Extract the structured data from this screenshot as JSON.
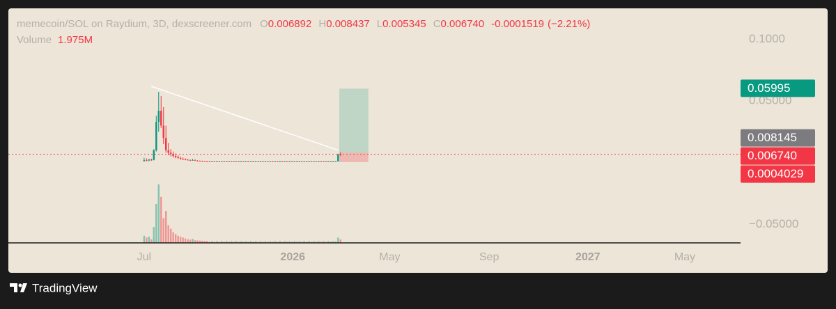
{
  "chart_data": {
    "type": "candlestick",
    "title": "memecoin/SOL on Raydium, 3D, dexscreener.com",
    "ohlc": [
      {
        "letter": "O",
        "value": 0.006892
      },
      {
        "letter": "H",
        "value": 0.008437
      },
      {
        "letter": "L",
        "value": 0.005345
      },
      {
        "letter": "C",
        "value": 0.00674,
        "label": "0.006740"
      }
    ],
    "change": -0.0001519,
    "change_pct": {
      "value": -2.21,
      "label": "(−2.21%)"
    },
    "volume_title": "Volume",
    "volume_value": {
      "value": 1975000,
      "label": "1.975M"
    },
    "categories": [
      null,
      null,
      null,
      null,
      null,
      null,
      null,
      null,
      null,
      null,
      null,
      null,
      null,
      null,
      null,
      null,
      null,
      null,
      null,
      null,
      null,
      null,
      null,
      null,
      null,
      null,
      null,
      null,
      null,
      null,
      null,
      null,
      null,
      null,
      null,
      null,
      null,
      null,
      null,
      null,
      null,
      null,
      null,
      null,
      null,
      null,
      null,
      null,
      null,
      null,
      null,
      null,
      null,
      null,
      null,
      null,
      null,
      null,
      null,
      null,
      null,
      null,
      null,
      null,
      null,
      null,
      null,
      null,
      null,
      null,
      null,
      null,
      null,
      null,
      null,
      null,
      null,
      null,
      null,
      null,
      null,
      null
    ],
    "open": [
      0.0012,
      0.002,
      0.0018,
      0.0025,
      0.0022,
      0.01,
      0.033,
      0.042,
      0.03,
      0.02,
      0.01,
      0.008,
      0.007,
      0.0055,
      0.0045,
      0.0038,
      0.003,
      0.0028,
      0.0024,
      0.002,
      0.0018,
      0.0022,
      0.0016,
      0.0015,
      0.0013,
      0.0012,
      0.0011,
      0.001,
      0.0009,
      0.001,
      0.0009,
      0.001,
      0.0009,
      0.001,
      0.0009,
      0.001,
      0.0009,
      0.001,
      0.0009,
      0.001,
      0.0009,
      0.001,
      0.0009,
      0.001,
      0.0009,
      0.001,
      0.0009,
      0.001,
      0.0009,
      0.001,
      0.0009,
      0.001,
      0.0009,
      0.001,
      0.0009,
      0.001,
      0.0009,
      0.001,
      0.0009,
      0.001,
      0.0009,
      0.001,
      0.0009,
      0.001,
      0.0009,
      0.001,
      0.0009,
      0.001,
      0.0009,
      0.001,
      0.0009,
      0.001,
      0.0009,
      0.001,
      0.0009,
      0.001,
      0.0009,
      0.001,
      0.0009,
      0.001,
      0.001,
      0.006892
    ],
    "high": [
      0.004,
      0.0035,
      0.003,
      0.0032,
      0.011,
      0.038,
      0.0573,
      0.054,
      0.045,
      0.03,
      0.016,
      0.011,
      0.009,
      0.0075,
      0.006,
      0.005,
      0.0042,
      0.0035,
      0.003,
      0.0026,
      0.003,
      0.0026,
      0.002,
      0.0018,
      0.0016,
      0.0014,
      0.0013,
      0.0011,
      0.0011,
      0.0011,
      0.0011,
      0.0011,
      0.0011,
      0.0011,
      0.0011,
      0.0011,
      0.0011,
      0.0011,
      0.0011,
      0.0011,
      0.0011,
      0.0011,
      0.0011,
      0.0011,
      0.0011,
      0.0011,
      0.0011,
      0.0011,
      0.0011,
      0.0011,
      0.0011,
      0.0011,
      0.0011,
      0.0011,
      0.0011,
      0.0011,
      0.0011,
      0.0011,
      0.0011,
      0.0011,
      0.0011,
      0.0011,
      0.0011,
      0.0011,
      0.0011,
      0.0011,
      0.0011,
      0.0011,
      0.0011,
      0.0011,
      0.0011,
      0.0011,
      0.0011,
      0.0011,
      0.0011,
      0.0011,
      0.0011,
      0.0011,
      0.0011,
      0.0011,
      0.0072,
      0.008437
    ],
    "low": [
      0.0008,
      0.0012,
      0.001,
      0.0015,
      0.0018,
      0.009,
      0.025,
      0.028,
      0.015,
      0.008,
      0.006,
      0.005,
      0.004,
      0.0035,
      0.003,
      0.0025,
      0.0022,
      0.002,
      0.0018,
      0.0015,
      0.0016,
      0.0014,
      0.0012,
      0.0011,
      0.001,
      0.0009,
      0.0009,
      0.0008,
      0.0008,
      0.0008,
      0.0008,
      0.0008,
      0.0008,
      0.0008,
      0.0008,
      0.0008,
      0.0008,
      0.0008,
      0.0008,
      0.0008,
      0.0008,
      0.0008,
      0.0008,
      0.0008,
      0.0008,
      0.0008,
      0.0008,
      0.0008,
      0.0008,
      0.0008,
      0.0008,
      0.0008,
      0.0008,
      0.0008,
      0.0008,
      0.0008,
      0.0008,
      0.0008,
      0.0008,
      0.0008,
      0.0008,
      0.0008,
      0.0008,
      0.0008,
      0.0008,
      0.0008,
      0.0008,
      0.0008,
      0.0008,
      0.0008,
      0.0008,
      0.0008,
      0.0008,
      0.0008,
      0.0008,
      0.0008,
      0.0008,
      0.0008,
      0.0008,
      0.0008,
      0.0009,
      0.005345
    ],
    "close": [
      0.002,
      0.0018,
      0.0025,
      0.0022,
      0.01,
      0.033,
      0.042,
      0.03,
      0.02,
      0.01,
      0.008,
      0.007,
      0.0055,
      0.0045,
      0.0038,
      0.003,
      0.0028,
      0.0024,
      0.002,
      0.0018,
      0.0022,
      0.0016,
      0.0015,
      0.0013,
      0.0012,
      0.0011,
      0.001,
      0.0009,
      0.001,
      0.0009,
      0.001,
      0.0009,
      0.001,
      0.0009,
      0.001,
      0.0009,
      0.001,
      0.0009,
      0.001,
      0.0009,
      0.001,
      0.0009,
      0.001,
      0.0009,
      0.001,
      0.0009,
      0.001,
      0.0009,
      0.001,
      0.0009,
      0.001,
      0.0009,
      0.001,
      0.0009,
      0.001,
      0.0009,
      0.001,
      0.0009,
      0.001,
      0.0009,
      0.001,
      0.0009,
      0.001,
      0.0009,
      0.001,
      0.0009,
      0.001,
      0.0009,
      0.001,
      0.0009,
      0.001,
      0.0009,
      0.001,
      0.0009,
      0.001,
      0.0009,
      0.001,
      0.0009,
      0.001,
      0.001,
      0.0069,
      0.00674
    ],
    "volume": [
      4000000,
      3000000,
      3500000,
      2000000,
      9000000,
      22000000,
      33000000,
      26000000,
      14000000,
      18000000,
      10000000,
      8000000,
      6000000,
      5000000,
      4000000,
      3500000,
      3000000,
      2500000,
      2000000,
      1800000,
      2200000,
      1500000,
      1400000,
      1300000,
      1200000,
      1100000,
      1000000,
      600000,
      900000,
      600000,
      900000,
      600000,
      900000,
      600000,
      900000,
      600000,
      900000,
      600000,
      900000,
      600000,
      900000,
      600000,
      900000,
      600000,
      900000,
      600000,
      900000,
      600000,
      900000,
      600000,
      900000,
      600000,
      900000,
      600000,
      900000,
      600000,
      900000,
      600000,
      900000,
      600000,
      900000,
      600000,
      900000,
      600000,
      900000,
      600000,
      900000,
      600000,
      900000,
      600000,
      900000,
      600000,
      900000,
      600000,
      900000,
      600000,
      900000,
      600000,
      900000,
      800000,
      3000000,
      1975000
    ],
    "up_color": "#089981",
    "down_color": "#f23645",
    "xlim": [
      -56,
      246
    ],
    "xticks": [
      {
        "value": 0,
        "label": "Jul"
      },
      {
        "value": 61.3,
        "label": "2026"
      },
      {
        "value": 101.3,
        "label": "May"
      },
      {
        "value": 142.3,
        "label": "Sep"
      },
      {
        "value": 183,
        "label": "2027"
      },
      {
        "value": 223,
        "label": "May"
      }
    ],
    "ylim": [
      -0.065,
      0.125
    ],
    "yticks": [
      {
        "value": 0.1,
        "label": "0.1000"
      },
      {
        "value": 0.05,
        "label": "0.05000"
      },
      {
        "value": -0.05,
        "label": "−0.05000"
      }
    ],
    "trend_line": {
      "x": [
        3,
        80
      ],
      "y": [
        0.0618,
        0.0101
      ],
      "color": "#ffffff"
    },
    "position": {
      "start": 80.5,
      "end": 92.5,
      "entry": 0.008145,
      "target": 0.05995,
      "stop": 0.0004029
    },
    "price_labels": [
      {
        "value": 0.05995,
        "color": "#089981"
      },
      {
        "value": 0.008145,
        "color": "#7c7c80"
      },
      {
        "value": 0.00674,
        "label": "0.006740",
        "color": "#f23645"
      },
      {
        "value": 0.0004029,
        "color": "#f23645"
      }
    ],
    "brand": "TradingView"
  }
}
